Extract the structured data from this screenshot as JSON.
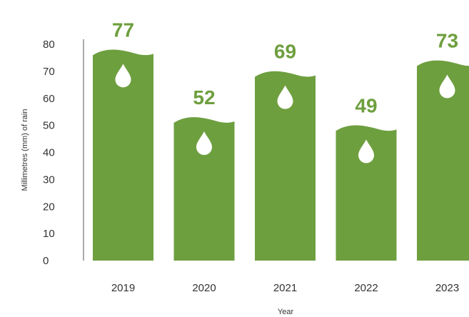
{
  "chart_data": {
    "type": "bar",
    "title": "",
    "xlabel": "Year",
    "ylabel": "Millimetres (mm) of rain",
    "categories": [
      "2019",
      "2020",
      "2021",
      "2022",
      "2023"
    ],
    "values": [
      77,
      52,
      69,
      49,
      73
    ],
    "data_labels": [
      "77",
      "52",
      "69",
      "49",
      "73"
    ],
    "yticks": [
      0,
      10,
      20,
      30,
      40,
      50,
      60,
      70,
      80
    ],
    "ylim": [
      0,
      80
    ],
    "grid": false,
    "legend": "none",
    "bar_color": "#6e9f3f",
    "label_color": "#6e9f3f",
    "bar_icon": "raindrop-icon"
  }
}
